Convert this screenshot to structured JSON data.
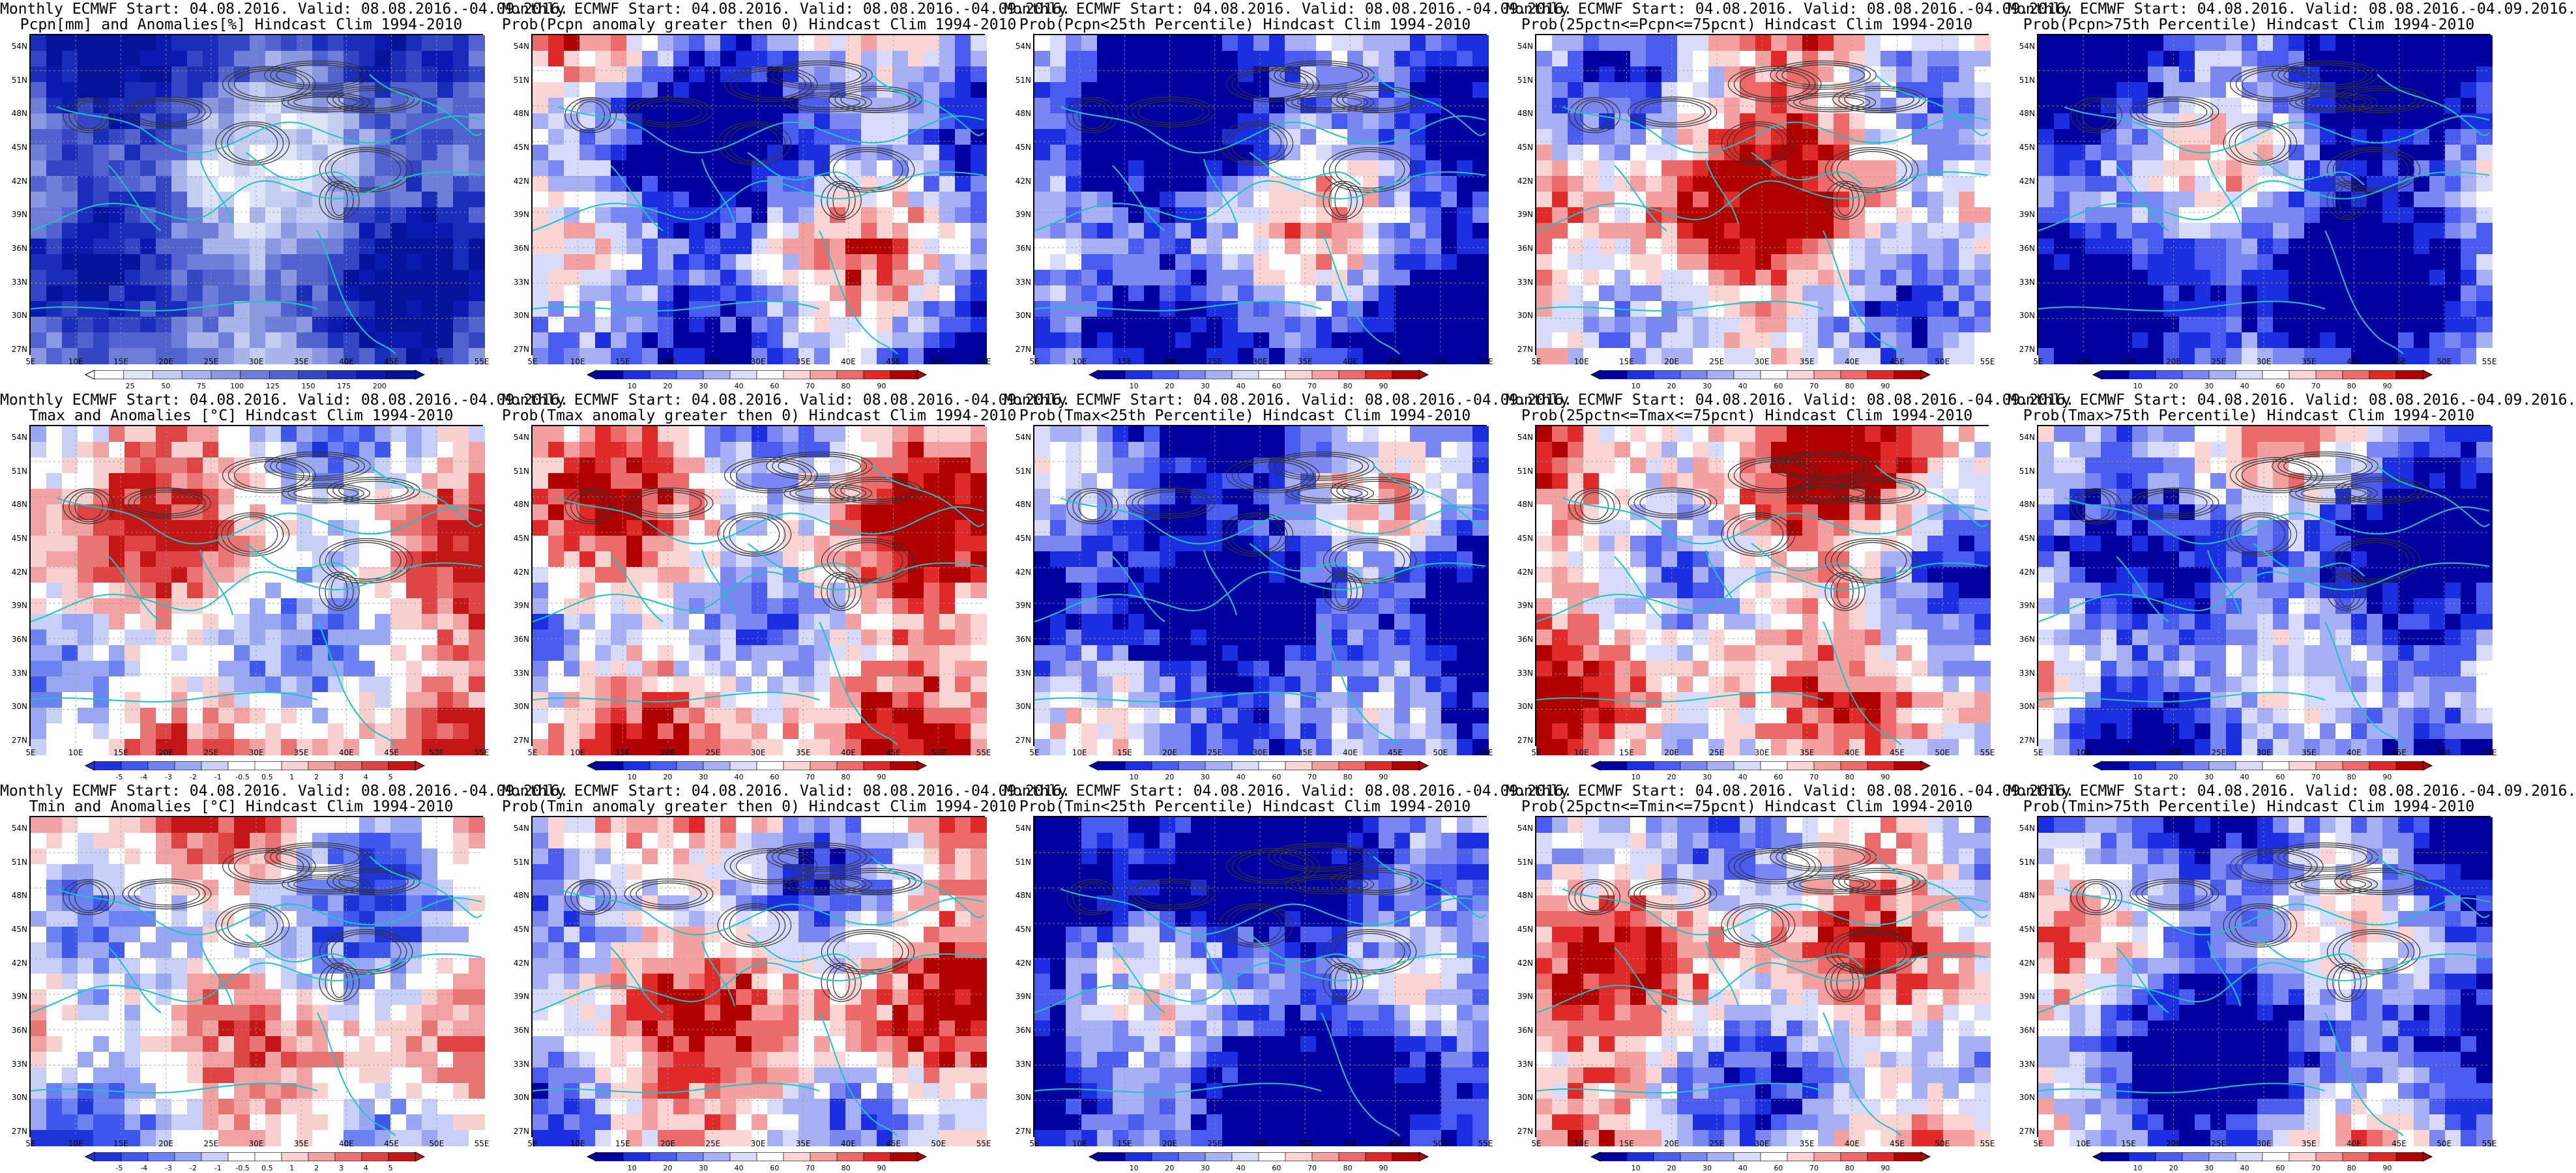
{
  "lat_labels": [
    "54N",
    "51N",
    "48N",
    "45N",
    "42N",
    "39N",
    "36N",
    "33N",
    "30N",
    "27N"
  ],
  "lon_labels": [
    "5E",
    "10E",
    "15E",
    "20E",
    "25E",
    "30E",
    "35E",
    "40E",
    "45E",
    "50E",
    "55E"
  ],
  "palettes": {
    "precip": [
      "#ffffff",
      "#dfe5f6",
      "#c4cdf0",
      "#a8b4ea",
      "#8a98e2",
      "#6e7ed8",
      "#5262ce",
      "#3446c4",
      "#1a2dba",
      "#0a1ab0",
      "#05139a"
    ],
    "prob": [
      "#0000a0",
      "#1c2fe0",
      "#4a5bf0",
      "#7a86f2",
      "#a8b0f5",
      "#d8dcfa",
      "#ffffff",
      "#fbd4d4",
      "#f4a0a0",
      "#ec6a6a",
      "#e02a2a",
      "#b00000"
    ],
    "anom": [
      "#1c34d8",
      "#3e58ee",
      "#6c82f2",
      "#9aa8f4",
      "#c8d0f8",
      "#ffffff",
      "#ffffff",
      "#f9d0d0",
      "#f2a2a2",
      "#e87474",
      "#de4444",
      "#c41616"
    ]
  },
  "colors": {
    "coast": "#19c5c5",
    "contour": "#333333",
    "grid": "#9a9a9a"
  },
  "panels": [
    {
      "id": "pcpn-anom",
      "title_1": "Monthly ECMWF Start: 04.08.2016. Valid: 08.08.2016.-04.09.2016.",
      "title_2": "Pcpn[mm] and Anomalies[%] Hindcast Clim 1994-2010",
      "palette": "precip",
      "bias": 0.55,
      "cbar_ticks": [
        "25",
        "50",
        "75",
        "100",
        "125",
        "150",
        "175",
        "200"
      ]
    },
    {
      "id": "pcpn-prob-pos",
      "title_1": "Monthly ECMWF Start: 04.08.2016. Valid: 08.08.2016.-04.09.2016.",
      "title_2": "Prob(Pcpn anomaly greater then 0) Hindcast Clim 1994-2010",
      "palette": "prob",
      "bias": 0.3,
      "cbar_ticks": [
        "10",
        "20",
        "30",
        "40",
        "60",
        "70",
        "80",
        "90"
      ]
    },
    {
      "id": "pcpn-prob-lt25",
      "title_1": "Monthly ECMWF Start: 04.08.2016. Valid: 08.08.2016.-04.09.2016.",
      "title_2": "Prob(Pcpn<25th Percentile) Hindcast Clim 1994-2010",
      "palette": "prob",
      "bias": 0.22,
      "cbar_ticks": [
        "10",
        "20",
        "30",
        "40",
        "60",
        "70",
        "80",
        "90"
      ]
    },
    {
      "id": "pcpn-prob-mid",
      "title_1": "Monthly ECMWF Start: 04.08.2016. Valid: 08.08.2016.-04.09.2016.",
      "title_2": "Prob(25pctn<=Pcpn<=75pcnt) Hindcast Clim 1994-2010",
      "palette": "prob",
      "bias": 0.62,
      "cbar_ticks": [
        "10",
        "20",
        "30",
        "40",
        "60",
        "70",
        "80",
        "90"
      ]
    },
    {
      "id": "pcpn-prob-gt75",
      "title_1": "Monthly ECMWF Start: 04.08.2016. Valid: 08.08.2016.-04.09.2016.",
      "title_2": "Prob(Pcpn>75th Percentile) Hindcast Clim 1994-2010",
      "palette": "prob",
      "bias": 0.2,
      "cbar_ticks": [
        "10",
        "20",
        "30",
        "40",
        "60",
        "70",
        "80",
        "90"
      ]
    },
    {
      "id": "tmax-anom",
      "title_1": "Monthly ECMWF Start: 04.08.2016. Valid: 08.08.2016.-04.09.2016.",
      "title_2": "Tmax and Anomalies [°C] Hindcast Clim 1994-2010",
      "palette": "anom",
      "bias": 0.58,
      "cbar_ticks": [
        "-5",
        "-4",
        "-3",
        "-2",
        "-1",
        "-0.5",
        "0.5",
        "1",
        "2",
        "3",
        "4",
        "5"
      ]
    },
    {
      "id": "tmax-prob-pos",
      "title_1": "Monthly ECMWF Start: 04.08.2016. Valid: 08.08.2016.-04.09.2016.",
      "title_2": "Prob(Tmax anomaly greater then 0) Hindcast Clim 1994-2010",
      "palette": "prob",
      "bias": 0.6,
      "cbar_ticks": [
        "10",
        "20",
        "30",
        "40",
        "60",
        "70",
        "80",
        "90"
      ]
    },
    {
      "id": "tmax-prob-lt25",
      "title_1": "Monthly ECMWF Start: 04.08.2016. Valid: 08.08.2016.-04.09.2016.",
      "title_2": "Prob(Tmax<25th Percentile) Hindcast Clim 1994-2010",
      "palette": "prob",
      "bias": 0.15,
      "cbar_ticks": [
        "10",
        "20",
        "30",
        "40",
        "60",
        "70",
        "80",
        "90"
      ]
    },
    {
      "id": "tmax-prob-mid",
      "title_1": "Monthly ECMWF Start: 04.08.2016. Valid: 08.08.2016.-04.09.2016.",
      "title_2": "Prob(25pctn<=Tmax<=75pcnt) Hindcast Clim 1994-2010",
      "palette": "prob",
      "bias": 0.58,
      "cbar_ticks": [
        "10",
        "20",
        "30",
        "40",
        "60",
        "70",
        "80",
        "90"
      ]
    },
    {
      "id": "tmax-prob-gt75",
      "title_1": "Monthly ECMWF Start: 04.08.2016. Valid: 08.08.2016.-04.09.2016.",
      "title_2": "Prob(Tmax>75th Percentile) Hindcast Clim 1994-2010",
      "palette": "prob",
      "bias": 0.28,
      "cbar_ticks": [
        "10",
        "20",
        "30",
        "40",
        "60",
        "70",
        "80",
        "90"
      ]
    },
    {
      "id": "tmin-anom",
      "title_1": "Monthly ECMWF Start: 04.08.2016. Valid: 08.08.2016.-04.09.2016.",
      "title_2": "Tmin and Anomalies [°C] Hindcast Clim 1994-2010",
      "palette": "anom",
      "bias": 0.52,
      "cbar_ticks": [
        "-5",
        "-4",
        "-3",
        "-2",
        "-1",
        "-0.5",
        "0.5",
        "1",
        "2",
        "3",
        "4",
        "5"
      ]
    },
    {
      "id": "tmin-prob-pos",
      "title_1": "Monthly ECMWF Start: 04.08.2016. Valid: 08.08.2016.-04.09.2016.",
      "title_2": "Prob(Tmin anomaly greater then 0) Hindcast Clim 1994-2010",
      "palette": "prob",
      "bias": 0.6,
      "cbar_ticks": [
        "10",
        "20",
        "30",
        "40",
        "60",
        "70",
        "80",
        "90"
      ]
    },
    {
      "id": "tmin-prob-lt25",
      "title_1": "Monthly ECMWF Start: 04.08.2016. Valid: 08.08.2016.-04.09.2016.",
      "title_2": "Prob(Tmin<25th Percentile) Hindcast Clim 1994-2010",
      "palette": "prob",
      "bias": 0.15,
      "cbar_ticks": [
        "10",
        "20",
        "30",
        "40",
        "60",
        "70",
        "80",
        "90"
      ]
    },
    {
      "id": "tmin-prob-mid",
      "title_1": "Monthly ECMWF Start: 04.08.2016. Valid: 08.08.2016.-04.09.2016.",
      "title_2": "Prob(25pctn<=Tmin<=75pcnt) Hindcast Clim 1994-2010",
      "palette": "prob",
      "bias": 0.55,
      "cbar_ticks": [
        "10",
        "20",
        "30",
        "40",
        "60",
        "70",
        "80",
        "90"
      ]
    },
    {
      "id": "tmin-prob-gt75",
      "title_1": "Monthly ECMWF Start: 04.08.2016. Valid: 08.08.2016.-04.09.2016.",
      "title_2": "Prob(Tmin>75th Percentile) Hindcast Clim 1994-2010",
      "palette": "prob",
      "bias": 0.3,
      "cbar_ticks": [
        "10",
        "20",
        "30",
        "40",
        "60",
        "70",
        "80",
        "90"
      ]
    }
  ]
}
